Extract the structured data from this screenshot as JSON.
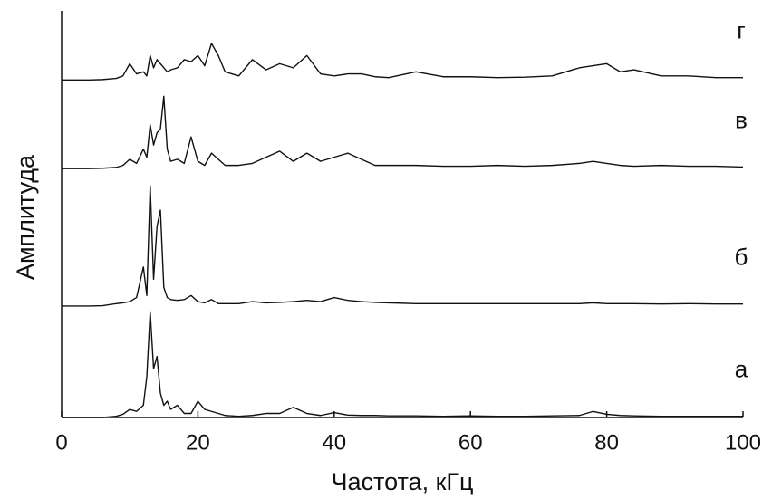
{
  "chart_data": {
    "type": "line",
    "x_label": "Частота, кГц",
    "y_label": "Амплитуда",
    "x": [
      0,
      2,
      4,
      6,
      8,
      9,
      10,
      11,
      12,
      12.5,
      13,
      13.5,
      14,
      14.5,
      15,
      15.5,
      16,
      17,
      18,
      19,
      20,
      21,
      22,
      23,
      24,
      26,
      28,
      30,
      32,
      34,
      36,
      38,
      40,
      42,
      44,
      46,
      48,
      52,
      56,
      60,
      64,
      68,
      72,
      76,
      78,
      80,
      82,
      84,
      88,
      92,
      96,
      100
    ],
    "series": [
      {
        "name": "а",
        "color": "#111111",
        "values": [
          0,
          0,
          0,
          0,
          0.3,
          0.8,
          2,
          1.5,
          3,
          10,
          26,
          12,
          15,
          6,
          3,
          4,
          2,
          3,
          1,
          1,
          4,
          2,
          1.5,
          1,
          0.5,
          0.3,
          0.5,
          1,
          1,
          2.5,
          1,
          0.5,
          1.2,
          0.6,
          0.5,
          0.5,
          0.4,
          0.4,
          0.3,
          0.4,
          0.3,
          0.3,
          0.4,
          0.5,
          1.5,
          0.8,
          0.5,
          0.4,
          0.3,
          0.3,
          0.3,
          0.3
        ]
      },
      {
        "name": "б",
        "color": "#111111",
        "values": [
          27.4,
          27.4,
          27.4,
          27.5,
          28,
          28.2,
          28.5,
          29.5,
          37,
          30,
          57,
          34,
          47,
          51,
          32,
          29.5,
          29,
          28.8,
          29,
          30,
          28.5,
          28.2,
          29,
          28,
          28,
          28,
          28.5,
          28.2,
          28.3,
          28.5,
          28.8,
          28.5,
          29.5,
          28.8,
          28.5,
          28.3,
          28.2,
          28,
          28,
          28,
          28,
          28,
          28,
          28,
          28.2,
          28,
          28,
          28,
          27.9,
          28,
          27.9,
          27.9
        ]
      },
      {
        "name": "в",
        "color": "#111111",
        "values": [
          61.2,
          61.2,
          61.2,
          61.3,
          61.5,
          62,
          63.5,
          62.5,
          66,
          64,
          72,
          67,
          70,
          71,
          79,
          66,
          63,
          63.5,
          62.5,
          69,
          63,
          62,
          65,
          63.5,
          62,
          62,
          62.5,
          64,
          65.5,
          63,
          65,
          63,
          64,
          65,
          63.5,
          62,
          62,
          62,
          61.8,
          61.8,
          62,
          61.8,
          62,
          62.5,
          63,
          62.5,
          62,
          61.8,
          62,
          61.8,
          61.8,
          61.6
        ]
      },
      {
        "name": "г",
        "color": "#111111",
        "values": [
          83,
          83,
          83,
          83.1,
          83.4,
          84,
          87,
          84.5,
          85,
          84,
          89,
          86,
          88,
          87,
          86,
          85,
          85.5,
          86,
          88,
          87.5,
          89,
          86.5,
          92,
          89,
          85,
          84,
          88,
          85.5,
          87,
          86,
          89,
          84.5,
          84,
          84.5,
          84.5,
          83.8,
          83.6,
          85,
          83.8,
          83.8,
          83.6,
          83.7,
          84,
          86,
          86.5,
          87,
          85,
          85.5,
          84,
          84,
          83.6,
          83.6
        ]
      }
    ],
    "xlim": [
      0,
      100
    ],
    "xticks": [
      0,
      20,
      40,
      60,
      80,
      100
    ],
    "ylim": [
      0,
      100
    ]
  }
}
